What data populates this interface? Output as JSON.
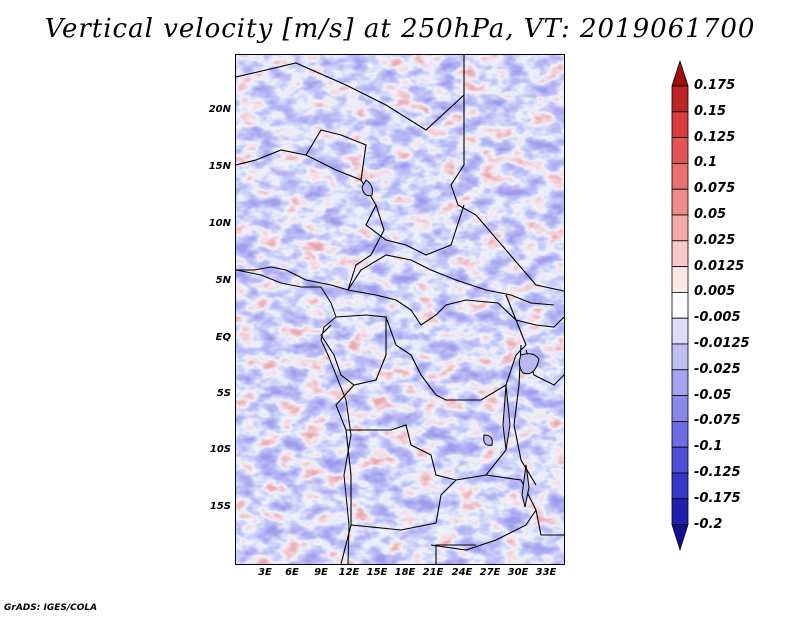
{
  "title": "Vertical velocity [m/s] at 250hPa, VT: 2019061700",
  "credit": "GrADS: IGES/COLA",
  "lat_labels": [
    "20N",
    "15N",
    "10N",
    "5N",
    "EQ",
    "5S",
    "10S",
    "15S"
  ],
  "lon_labels": [
    "3E",
    "6E",
    "9E",
    "12E",
    "15E",
    "18E",
    "21E",
    "24E",
    "27E",
    "30E",
    "33E"
  ],
  "colorbar": {
    "levels": [
      "0.175",
      "0.15",
      "0.125",
      "0.1",
      "0.075",
      "0.05",
      "0.025",
      "0.0125",
      "0.005",
      "-0.005",
      "-0.0125",
      "-0.025",
      "-0.05",
      "-0.075",
      "-0.1",
      "-0.125",
      "-0.175",
      "-0.2"
    ],
    "colors": [
      "#a01010",
      "#c02525",
      "#d83c3c",
      "#e35555",
      "#ea7070",
      "#f08c8c",
      "#f5a8a8",
      "#f9c8c8",
      "#fde8e8",
      "#ffffff",
      "#dcdcfa",
      "#c0c0f5",
      "#a4a4f0",
      "#8888ea",
      "#6c6ce3",
      "#5050d8",
      "#3636c8",
      "#2020b0",
      "#121290"
    ]
  }
}
